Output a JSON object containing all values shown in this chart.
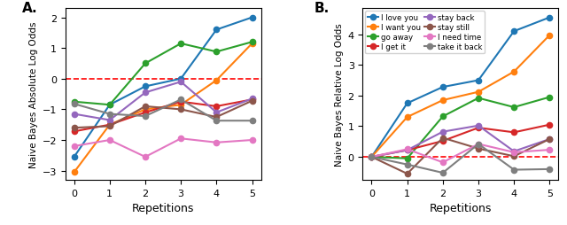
{
  "repetitions": [
    0,
    1,
    2,
    3,
    4,
    5
  ],
  "panel_A": {
    "title": "A.",
    "ylabel": "Naive Bayes Absolute Log Odds",
    "xlabel": "Repetitions",
    "ylim": [
      -3.3,
      2.3
    ],
    "yticks": [
      -3,
      -2,
      -1,
      0,
      1,
      2
    ],
    "series": {
      "I love you": {
        "color": "#1f77b4",
        "values": [
          -2.55,
          -0.85,
          -0.25,
          0.0,
          1.6,
          2.0
        ]
      },
      "I want you": {
        "color": "#ff7f0e",
        "values": [
          -3.05,
          -1.5,
          -1.0,
          -0.85,
          -0.05,
          1.15
        ]
      },
      "go away": {
        "color": "#2ca02c",
        "values": [
          -0.75,
          -0.85,
          0.5,
          1.15,
          0.88,
          1.2
        ]
      },
      "I get it": {
        "color": "#d62728",
        "values": [
          -1.72,
          -1.5,
          -1.1,
          -0.75,
          -0.9,
          -0.68
        ]
      },
      "stay back": {
        "color": "#9467bd",
        "values": [
          -1.15,
          -1.35,
          -0.45,
          -0.1,
          -1.1,
          -0.65
        ]
      },
      "stay still": {
        "color": "#8c564b",
        "values": [
          -1.6,
          -1.55,
          -0.9,
          -1.0,
          -1.25,
          -0.72
        ]
      },
      "I need time": {
        "color": "#e377c2",
        "values": [
          -2.2,
          -2.0,
          -2.55,
          -1.95,
          -2.08,
          -2.0
        ]
      },
      "take it back": {
        "color": "#7f7f7f",
        "values": [
          -0.82,
          -1.15,
          -1.22,
          -0.68,
          -1.37,
          -1.37
        ]
      }
    }
  },
  "panel_B": {
    "title": "B.",
    "ylabel": "Naive Bayes Relative Log Odds",
    "xlabel": "Repetitions",
    "ylim": [
      -0.75,
      4.85
    ],
    "yticks": [
      0,
      1,
      2,
      3,
      4
    ],
    "series": {
      "I love you": {
        "color": "#1f77b4",
        "values": [
          0.0,
          1.75,
          2.28,
          2.5,
          4.1,
          4.55
        ]
      },
      "I want you": {
        "color": "#ff7f0e",
        "values": [
          0.0,
          1.3,
          1.85,
          2.12,
          2.78,
          3.97
        ]
      },
      "go away": {
        "color": "#2ca02c",
        "values": [
          0.0,
          -0.05,
          1.32,
          1.92,
          1.62,
          1.95
        ]
      },
      "I get it": {
        "color": "#d62728",
        "values": [
          0.0,
          0.22,
          0.52,
          0.95,
          0.8,
          1.05
        ]
      },
      "stay back": {
        "color": "#9467bd",
        "values": [
          0.0,
          0.22,
          0.82,
          1.02,
          0.18,
          0.58
        ]
      },
      "stay still": {
        "color": "#8c564b",
        "values": [
          0.0,
          -0.55,
          0.62,
          0.27,
          0.02,
          0.58
        ]
      },
      "I need time": {
        "color": "#e377c2",
        "values": [
          0.0,
          0.25,
          -0.18,
          0.42,
          0.15,
          0.23
        ]
      },
      "take it back": {
        "color": "#7f7f7f",
        "values": [
          0.0,
          -0.25,
          -0.52,
          0.42,
          -0.42,
          -0.4
        ]
      }
    },
    "legend_entries": [
      {
        "label": "I love you",
        "color": "#1f77b4"
      },
      {
        "label": "I want you",
        "color": "#ff7f0e"
      },
      {
        "label": "go away",
        "color": "#2ca02c"
      },
      {
        "label": "I get it",
        "color": "#d62728"
      },
      {
        "label": "stay back",
        "color": "#9467bd"
      },
      {
        "label": "stay still",
        "color": "#8c564b"
      },
      {
        "label": "I need time",
        "color": "#e377c2"
      },
      {
        "label": "take it back",
        "color": "#7f7f7f"
      }
    ]
  },
  "dashed_line_color": "#ff0000",
  "marker": "o",
  "linewidth": 1.5,
  "markersize": 4.5,
  "fig_width": 6.4,
  "fig_height": 2.55,
  "dpi": 100
}
